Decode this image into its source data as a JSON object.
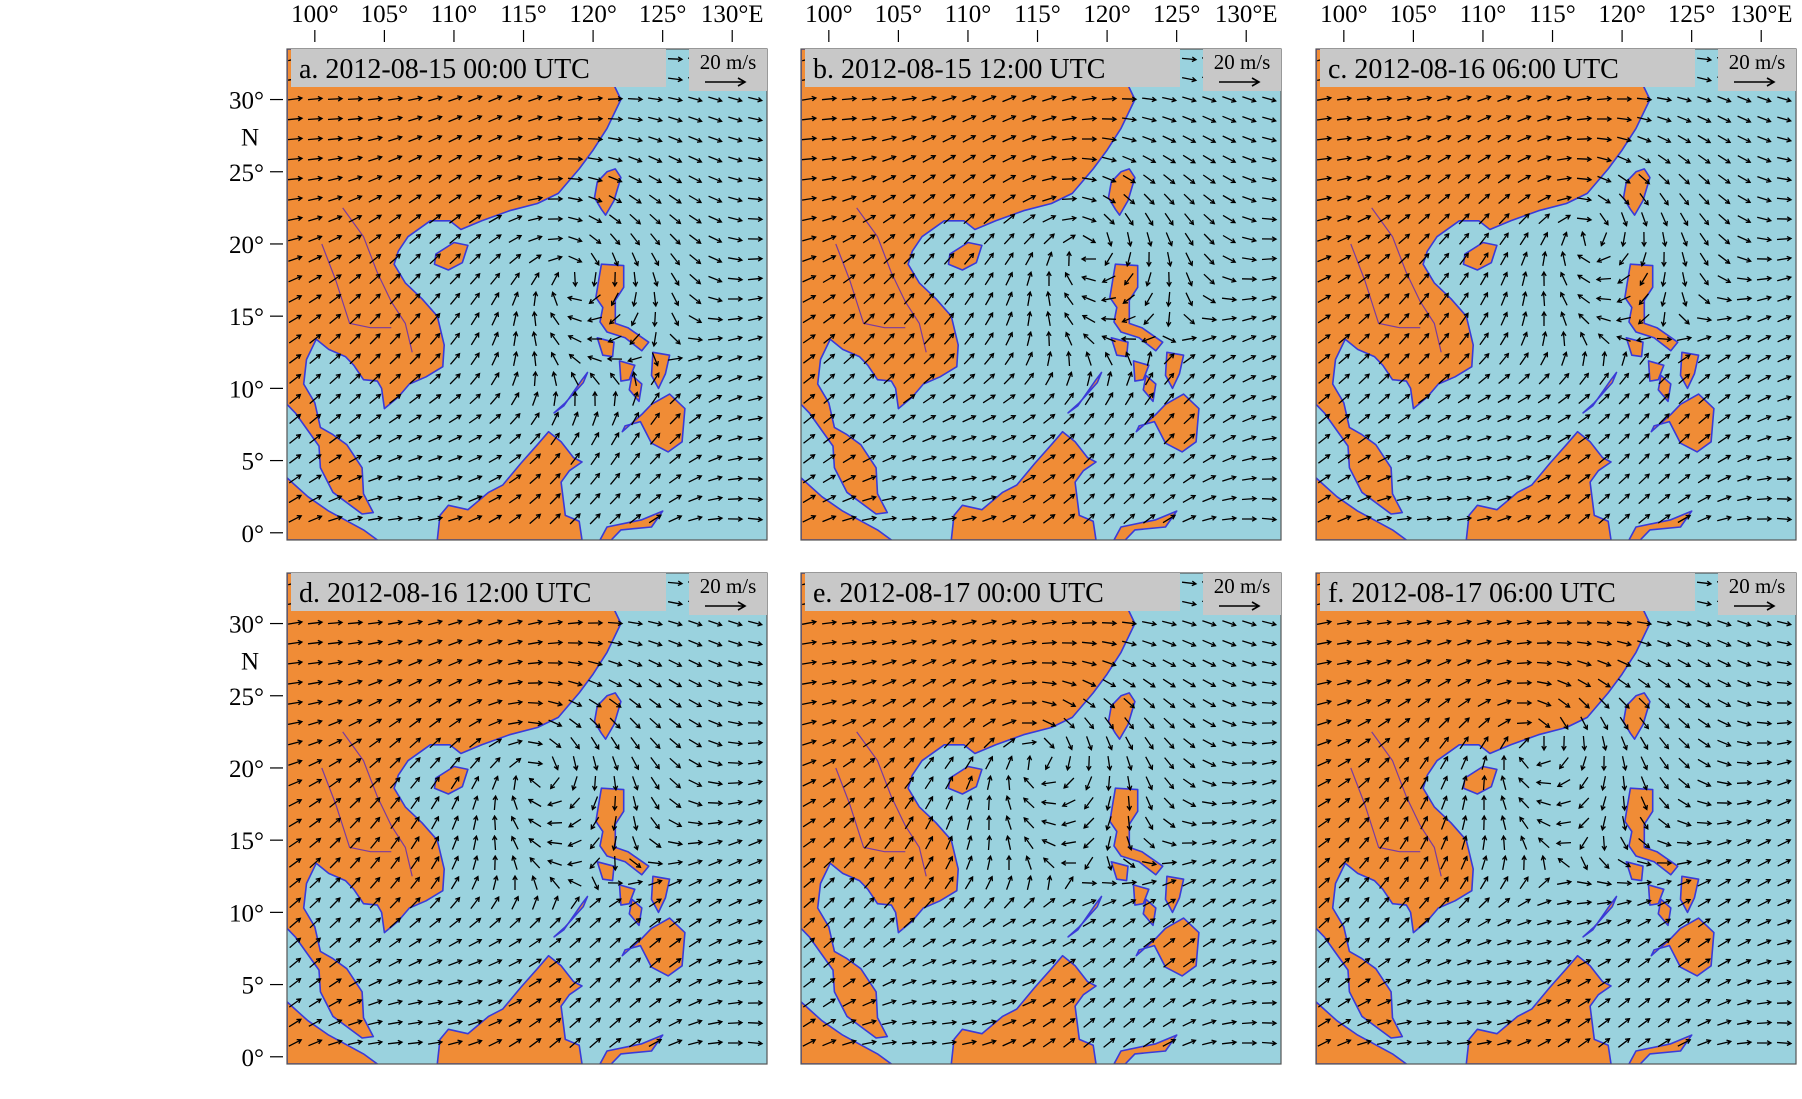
{
  "figure": {
    "lon_ticks": [
      "100°",
      "105°",
      "110°",
      "115°",
      "120°",
      "125°",
      "130°E"
    ],
    "lat_ticks": [
      "30°",
      "25°",
      "20°",
      "15°",
      "10°",
      "5°",
      "0°"
    ],
    "lat_hemisphere": "N",
    "scale_label": "20 m/s",
    "colors": {
      "land": "#F08C36",
      "sea": "#9AD2DE",
      "coast": "#3A3AD8",
      "label_box": "#C8C8C8",
      "arrow": "#000000"
    }
  },
  "panels": [
    {
      "label": "a. 2012-08-15 00:00 UTC",
      "cyclone_center": {
        "lon": 118.5,
        "lat": 17.5
      }
    },
    {
      "label": "b. 2012-08-15 12:00 UTC",
      "cyclone_center": {
        "lon": 118.5,
        "lat": 19.5
      }
    },
    {
      "label": "c. 2012-08-16 06:00 UTC",
      "cyclone_center": {
        "lon": 117.5,
        "lat": 20.5
      }
    },
    {
      "label": "d. 2012-08-16 12:00 UTC",
      "cyclone_center": {
        "lon": 116.0,
        "lat": 19.5
      }
    },
    {
      "label": "e. 2012-08-17 00:00 UTC",
      "cyclone_center": {
        "lon": 115.0,
        "lat": 20.5
      }
    },
    {
      "label": "f. 2012-08-17 06:00 UTC",
      "cyclone_center": {
        "lon": 113.5,
        "lat": 21.5
      }
    }
  ]
}
